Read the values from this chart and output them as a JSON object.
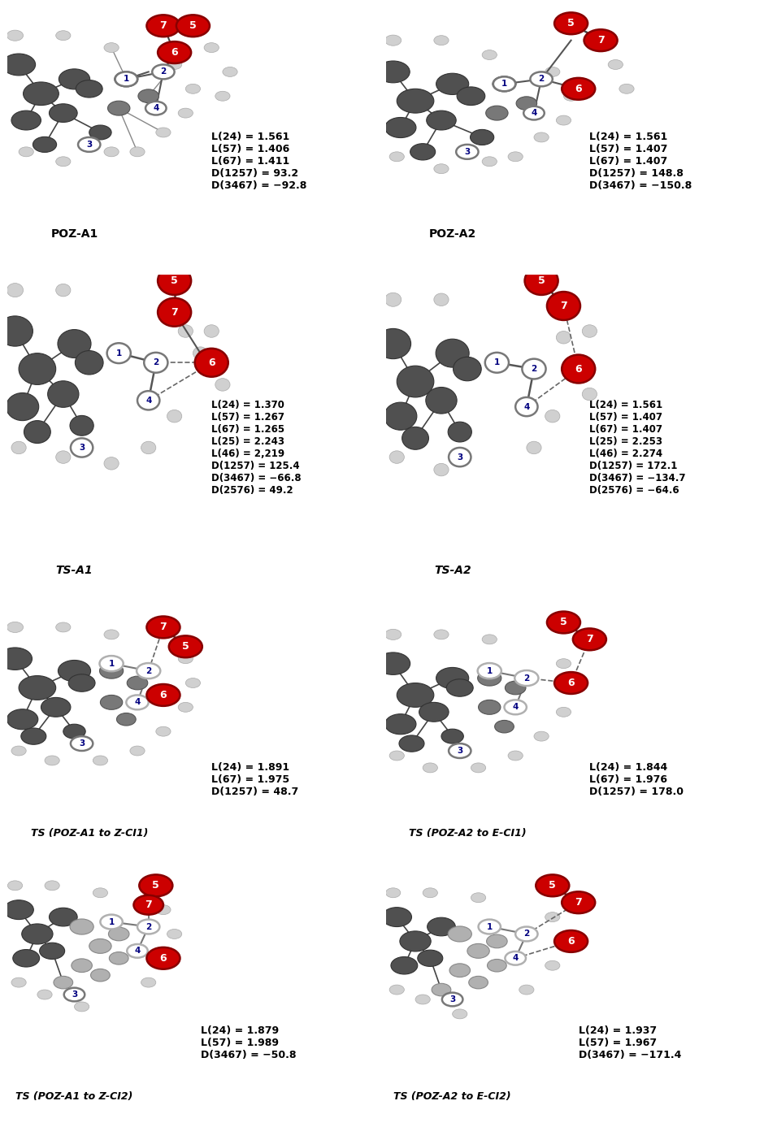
{
  "panels": [
    {
      "row": 0,
      "col": 0,
      "label": "POZ-A1",
      "params": "L(24) = 1.561\nL(57) = 1.406\nL(67) = 1.411\nD(1257) = 93.2\nD(3467) = −92.8",
      "n_params": 5
    },
    {
      "row": 0,
      "col": 1,
      "label": "POZ-A2",
      "params": "L(24) = 1.561\nL(57) = 1.407\nL(67) = 1.407\nD(1257) = 148.8\nD(3467) = −150.8",
      "n_params": 5
    },
    {
      "row": 1,
      "col": 0,
      "label": "TS-A1",
      "params": "L(24) = 1.370\nL(57) = 1.267\nL(67) = 1.265\nL(25) = 2.243\nL(46) = 2,219\nD(1257) = 125.4\nD(3467) = −66.8\nD(2576) = 49.2",
      "n_params": 8
    },
    {
      "row": 1,
      "col": 1,
      "label": "TS-A2",
      "params": "L(24) = 1.561\nL(57) = 1.407\nL(67) = 1.407\nL(25) = 2.253\nL(46) = 2.274\nD(1257) = 172.1\nD(3467) = −134.7\nD(2576) = −64.6",
      "n_params": 8
    },
    {
      "row": 2,
      "col": 0,
      "label": "TS (POZ-A1 to Z-CI1)",
      "params": "L(24) = 1.891\nL(67) = 1.975\nD(1257) = 48.7",
      "n_params": 3
    },
    {
      "row": 2,
      "col": 1,
      "label": "TS (POZ-A2 to E-CI1)",
      "params": "L(24) = 1.844\nL(67) = 1.976\nD(1257) = 178.0",
      "n_params": 3
    },
    {
      "row": 3,
      "col": 0,
      "label": "TS (POZ-A1 to Z-CI2)",
      "params": "L(24) = 1.879\nL(57) = 1.989\nD(3467) = −50.8",
      "n_params": 3
    },
    {
      "row": 3,
      "col": 1,
      "label": "TS (POZ-A2 to E-CI2)",
      "params": "L(24) = 1.937\nL(57) = 1.967\nD(3467) = −171.4",
      "n_params": 3
    }
  ],
  "bg_color": "#ffffff",
  "figsize": [
    9.4,
    13.87
  ],
  "dpi": 100
}
